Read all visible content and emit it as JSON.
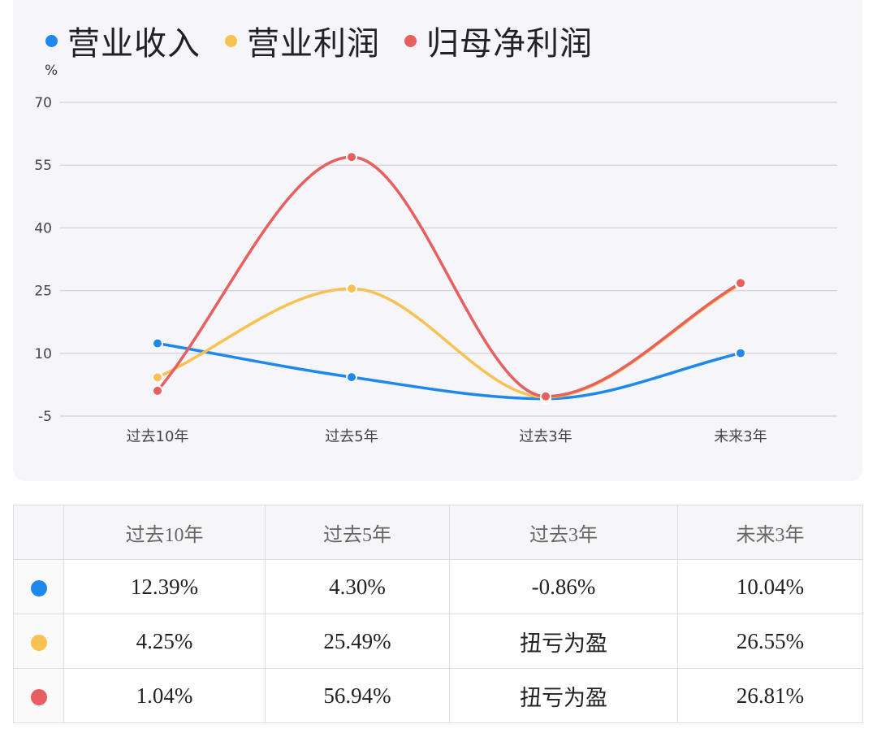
{
  "colors": {
    "revenue": "#1f88ec",
    "op_profit": "#f8c152",
    "net_profit": "#e85f5f",
    "grid": "#d7d7dc"
  },
  "legend": {
    "revenue": "营业收入",
    "op_profit": "营业利润",
    "net_profit": "归母净利润"
  },
  "unit": "%",
  "chart_data": {
    "type": "line",
    "categories": [
      "过去10年",
      "过去5年",
      "过去3年",
      "未来3年"
    ],
    "yticks": [
      "70",
      "55",
      "40",
      "25",
      "10",
      "-5"
    ],
    "ylim": [
      -5,
      70
    ],
    "grid": true,
    "legend_position": "top-left",
    "series": [
      {
        "name": "营业收入",
        "color": "#1f88ec",
        "values": [
          12.39,
          4.3,
          -0.86,
          10.04
        ]
      },
      {
        "name": "营业利润",
        "color": "#f8c152",
        "values": [
          4.25,
          25.49,
          -0.5,
          26.55
        ]
      },
      {
        "name": "归母净利润",
        "color": "#e85f5f",
        "values": [
          1.04,
          56.94,
          -0.3,
          26.81
        ]
      }
    ]
  },
  "table": {
    "headers": [
      "",
      "过去10年",
      "过去5年",
      "过去3年",
      "未来3年"
    ],
    "rows": [
      {
        "color": "#1f88ec",
        "cells": [
          "12.39%",
          "4.30%",
          "-0.86%",
          "10.04%"
        ]
      },
      {
        "color": "#f8c152",
        "cells": [
          "4.25%",
          "25.49%",
          "扭亏为盈",
          "26.55%"
        ]
      },
      {
        "color": "#e85f5f",
        "cells": [
          "1.04%",
          "56.94%",
          "扭亏为盈",
          "26.81%"
        ]
      }
    ]
  }
}
